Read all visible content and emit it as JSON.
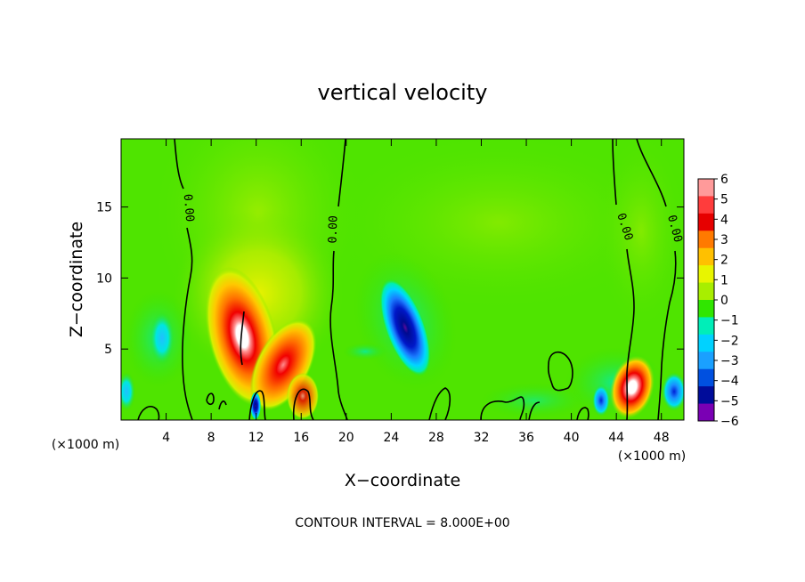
{
  "chart_data": {
    "type": "heatmap",
    "title": "vertical velocity",
    "xlabel": "X−coordinate",
    "ylabel": "Z−coordinate",
    "x_unit_left": "(×1000 m)",
    "x_unit_right": "(×1000 m)",
    "xlim": [
      0,
      50
    ],
    "ylim": [
      0,
      19.8
    ],
    "x_ticks": [
      "4",
      "8",
      "12",
      "16",
      "20",
      "24",
      "28",
      "32",
      "36",
      "40",
      "44",
      "48"
    ],
    "x_tick_values": [
      4,
      8,
      12,
      16,
      20,
      24,
      28,
      32,
      36,
      40,
      44,
      48
    ],
    "y_ticks": [
      "5",
      "10",
      "15"
    ],
    "y_tick_values": [
      5,
      10,
      15
    ],
    "footer": "CONTOUR INTERVAL = 8.000E+00",
    "contour_labels": [
      "0.00",
      "0.00",
      "0.00",
      "0.00"
    ],
    "colorbar": {
      "labels": [
        "6",
        "5",
        "4",
        "3",
        "2",
        "1",
        "0",
        "−1",
        "−2",
        "−3",
        "−4",
        "−5",
        "−6"
      ],
      "colors": [
        "#ff9a9a",
        "#ff3c3c",
        "#e60000",
        "#ff7a00",
        "#ffc000",
        "#e8f500",
        "#a8ee00",
        "#30e600",
        "#00eeb8",
        "#00d2ff",
        "#1aa0ff",
        "#0050e0",
        "#000c9a",
        "#7a00b4"
      ]
    },
    "background_value": 0.5,
    "features": [
      {
        "kind": "updraft",
        "x": 10.6,
        "z": 5.2,
        "peak": 6.5
      },
      {
        "kind": "updraft",
        "x": 14.6,
        "z": 3.8,
        "peak": 4.5
      },
      {
        "kind": "updraft",
        "x": 45.6,
        "z": 2.2,
        "peak": 5.5
      },
      {
        "kind": "downdraft",
        "x": 25.8,
        "z": 6.0,
        "peak": -5.7
      },
      {
        "kind": "downdraft",
        "x": 11.8,
        "z": 1.0,
        "peak": -3.5
      },
      {
        "kind": "downdraft",
        "x": 3.5,
        "z": 5.0,
        "peak": -2.2
      },
      {
        "kind": "downdraft",
        "x": 49.2,
        "z": 2.0,
        "peak": -3.0
      },
      {
        "kind": "downdraft",
        "x": 42.8,
        "z": 1.8,
        "peak": -2.5
      }
    ]
  }
}
